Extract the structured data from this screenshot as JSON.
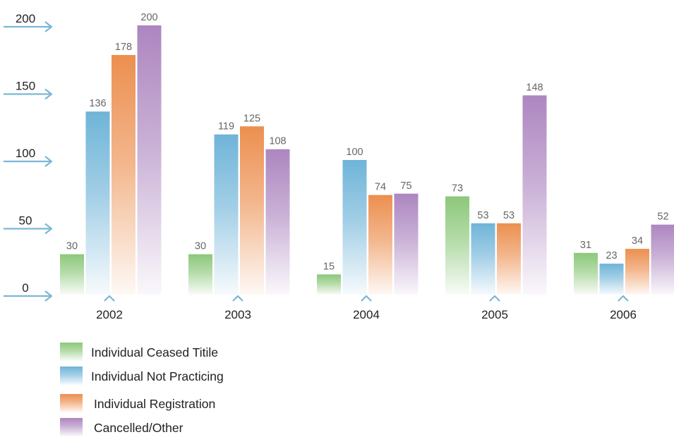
{
  "chart_data": {
    "type": "bar",
    "categories": [
      "2002",
      "2003",
      "2004",
      "2005",
      "2006"
    ],
    "series": [
      {
        "name": "Individual Ceased Titile",
        "values": [
          30,
          30,
          15,
          73,
          31
        ],
        "color": "#8cc87a"
      },
      {
        "name": "Individual Not Practicing",
        "values": [
          136,
          119,
          100,
          53,
          23
        ],
        "color": "#6fb4d8"
      },
      {
        "name": "Individual Registration",
        "values": [
          178,
          125,
          74,
          53,
          34
        ],
        "color": "#ec8f4f"
      },
      {
        "name": "Cancelled/Other",
        "values": [
          200,
          108,
          75,
          148,
          52
        ],
        "color": "#ad86c0"
      }
    ],
    "yticks": [
      0,
      50,
      100,
      150,
      200
    ],
    "ylim": [
      0,
      200
    ],
    "axis_color": "#7ab7d6",
    "grid": false,
    "legend_position": "bottom-left"
  }
}
